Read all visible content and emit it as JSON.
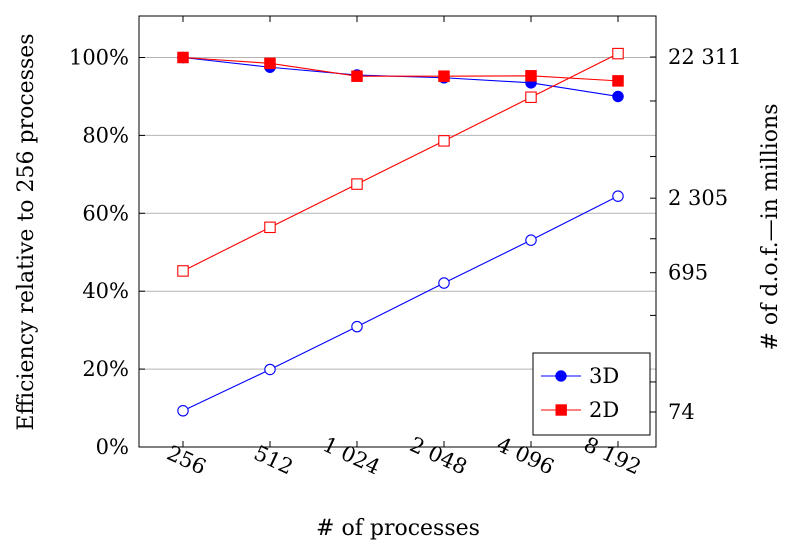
{
  "chart_data": {
    "type": "line",
    "x_categories": [
      "256",
      "512",
      "1 024",
      "2 048",
      "4 096",
      "8 192"
    ],
    "xlabel": "# of processes",
    "ylabel_left": "Efficiency relative to 256 processes",
    "ylabel_right": "# of d.o.f.—in millions",
    "ylim_left": [
      0,
      100
    ],
    "left_ticks": [
      {
        "value": 0,
        "label": "0%"
      },
      {
        "value": 20,
        "label": "20%"
      },
      {
        "value": 40,
        "label": "40%"
      },
      {
        "value": 60,
        "label": "60%"
      },
      {
        "value": 80,
        "label": "80%"
      },
      {
        "value": 100,
        "label": "100%"
      }
    ],
    "right_axis": {
      "scale": "log",
      "labeled_ticks": [
        {
          "value": 74,
          "label": "74"
        },
        {
          "value": 695,
          "label": "695"
        },
        {
          "value": 2305,
          "label": "2 305"
        },
        {
          "value": 22311,
          "label": "22 311"
        }
      ],
      "minor_ticks": [
        120,
        350,
        1200,
        4500,
        11000
      ]
    },
    "grid": "horizontal",
    "legend_position": "bottom-right",
    "series": [
      {
        "name": "3D",
        "kind": "efficiency",
        "color": "#0000ff",
        "marker": "circle",
        "filled": true,
        "values": [
          100,
          97.5,
          95.5,
          94.8,
          93.5,
          90
        ]
      },
      {
        "name": "2D",
        "kind": "efficiency",
        "color": "#ff0000",
        "marker": "square",
        "filled": true,
        "values": [
          100,
          98.5,
          95.2,
          95.2,
          95.3,
          94
        ]
      },
      {
        "kind": "dof",
        "color": "#0000ff",
        "marker": "circle",
        "filled": false,
        "values": [
          9.3,
          19.9,
          30.9,
          42.1,
          53.1,
          64.4
        ]
      },
      {
        "kind": "dof",
        "color": "#ff0000",
        "marker": "square",
        "filled": false,
        "values": [
          45.2,
          56.4,
          67.5,
          78.6,
          89.8,
          101
        ]
      }
    ]
  }
}
